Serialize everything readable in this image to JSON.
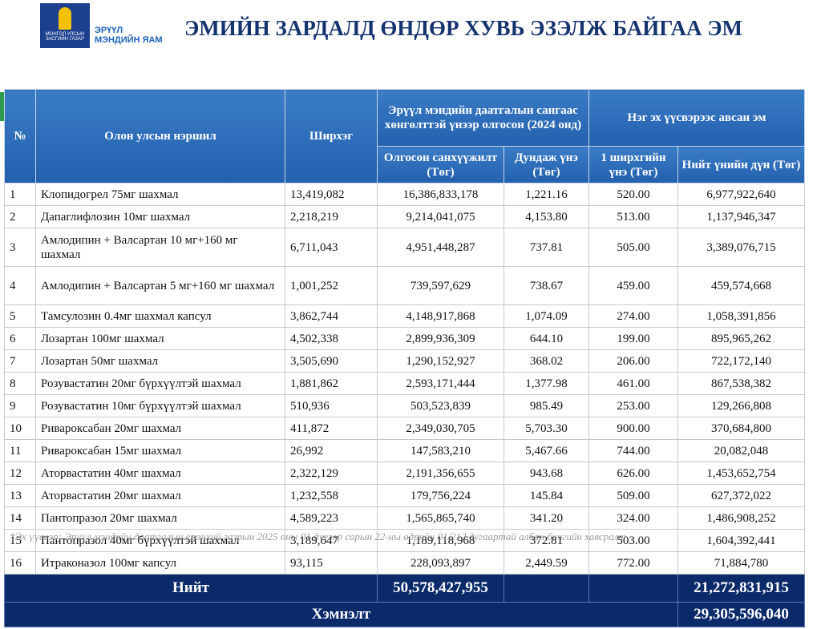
{
  "header": {
    "logo_lines": [
      "МОНГОЛ УЛСЫН",
      "ЗАСГИЙН ГАЗАР"
    ],
    "ministry_lines": [
      "ЭРҮҮЛ",
      "МЭНДИЙН ЯАМ"
    ],
    "title": "ЭМИЙН ЗАРДАЛД ӨНДӨР ХУВЬ ЭЗЭЛЖ БАЙГАА ЭМ"
  },
  "table": {
    "columns": {
      "no": "№",
      "name": "Олон улсын нэршил",
      "qty": "Ширхэг",
      "group1": "Эрүүл мэндийн даатгалын сангаас хөнгөлттэй үнээр олгосон (2024 онд)",
      "funded": "Олгосон санхүүжилт (Төг)",
      "avg": "Дундаж үнэ (Төг)",
      "group2": "Нэг эх үүсвэрээс авсан эм",
      "unit": "1 ширхгийн үнэ (Төг)",
      "total": "Нийт үнийн дүн (Төг)"
    },
    "rows": [
      [
        "1",
        "Клопидогрел 75мг шахмал",
        "13,419,082",
        "16,386,833,178",
        "1,221.16",
        "520.00",
        "6,977,922,640"
      ],
      [
        "2",
        "Дапаглифлозин 10мг шахмал",
        "2,218,219",
        "9,214,041,075",
        "4,153.80",
        "513.00",
        "1,137,946,347"
      ],
      [
        "3",
        "Амлодипин + Валсартан 10 мг+160 мг шахмал",
        "6,711,043",
        "4,951,448,287",
        "737.81",
        "505.00",
        "3,389,076,715"
      ],
      [
        "4",
        "Амлодипин + Валсартан 5 мг+160 мг шахмал",
        "1,001,252",
        "739,597,629",
        "738.67",
        "459.00",
        "459,574,668"
      ],
      [
        "5",
        "Тамсулозин 0.4мг шахмал капсул",
        "3,862,744",
        "4,148,917,868",
        "1,074.09",
        "274.00",
        "1,058,391,856"
      ],
      [
        "6",
        "Лозартан 100мг шахмал",
        "4,502,338",
        "2,899,936,309",
        "644.10",
        "199.00",
        "895,965,262"
      ],
      [
        "7",
        "Лозартан 50мг шахмал",
        "3,505,690",
        "1,290,152,927",
        "368.02",
        "206.00",
        "722,172,140"
      ],
      [
        "8",
        "Розувастатин 20мг бүрхүүлтэй шахмал",
        "1,881,862",
        "2,593,171,444",
        "1,377.98",
        "461.00",
        "867,538,382"
      ],
      [
        "9",
        "Розувастатин 10мг бүрхүүлтэй шахмал",
        "510,936",
        "503,523,839",
        "985.49",
        "253.00",
        "129,266,808"
      ],
      [
        "10",
        "Ривароксабан 20мг шахмал",
        "411,872",
        "2,349,030,705",
        "5,703.30",
        "900.00",
        "370,684,800"
      ],
      [
        "11",
        "Ривароксабан 15мг шахмал",
        "26,992",
        "147,583,210",
        "5,467.66",
        "744.00",
        "20,082,048"
      ],
      [
        "12",
        "Аторвастатин 40мг шахмал",
        "2,322,129",
        "2,191,356,655",
        "943.68",
        "626.00",
        "1,453,652,754"
      ],
      [
        "13",
        "Аторвастатин 20мг шахмал",
        "1,232,558",
        "179,756,224",
        "145.84",
        "509.00",
        "627,372,022"
      ],
      [
        "14",
        "Пантопразол 20мг шахмал",
        "4,589,223",
        "1,565,865,740",
        "341.20",
        "324.00",
        "1,486,908,252"
      ],
      [
        "15",
        "Пантопразол 40мг бүрхүүлтэй шахмал",
        "3,189,647",
        "1,189,118,968",
        "372.81",
        "503.00",
        "1,604,392,441"
      ],
      [
        "16",
        "Итраконазол 100мг капсул",
        "93,115",
        "228,093,897",
        "2,449.59",
        "772.00",
        "71,884,780"
      ]
    ],
    "total": {
      "label": "Нийт",
      "funded": "50,578,427,955",
      "total": "21,272,831,915"
    },
    "savings": {
      "label": "Хэмнэлт",
      "value": "29,305,596,040"
    }
  },
  "footnote": "*Эх үүсвэр: Эрүүл мэндийн даатгалын ерөнхий газрын 2025 оны 01 дүгээр сарын 22-ны өдрийн 01/212 дугаартай албан бичгийн хавсралт"
}
